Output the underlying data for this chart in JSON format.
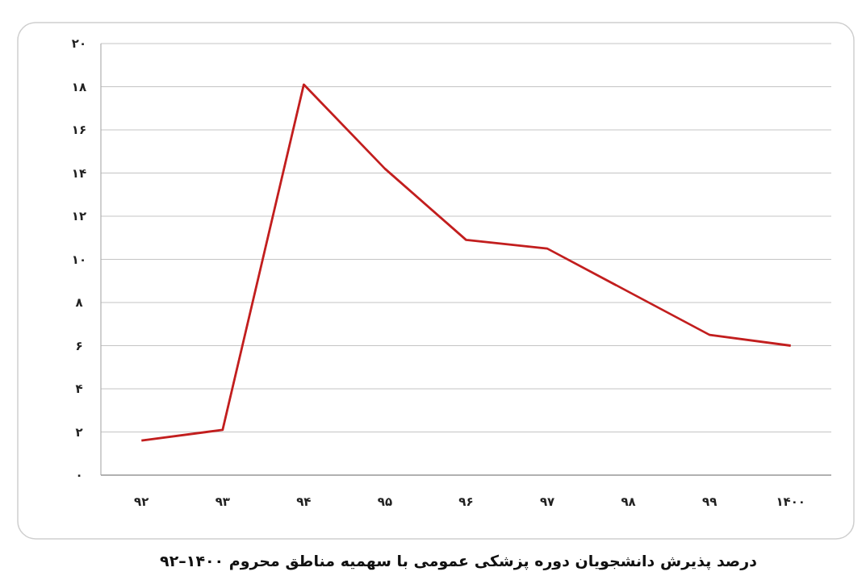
{
  "chart_data": {
    "type": "line",
    "title": "درصد پذیرش دانشجویان دوره پزشکی عمومی با سهمیه مناطق محروم ۱۴۰۰–۹۲",
    "categories": [
      "۹۲",
      "۹۳",
      "۹۴",
      "۹۵",
      "۹۶",
      "۹۷",
      "۹۸",
      "۹۹",
      "۱۴۰۰"
    ],
    "series": [
      {
        "color": "#c21e1e",
        "values": [
          1.6,
          2.1,
          18.1,
          14.2,
          10.9,
          10.5,
          8.5,
          6.5,
          6.0
        ]
      }
    ],
    "ylim": [
      0,
      20
    ],
    "yticks": [
      {
        "value": 0,
        "label": "۰"
      },
      {
        "value": 2,
        "label": "۲"
      },
      {
        "value": 4,
        "label": "۴"
      },
      {
        "value": 6,
        "label": "۶"
      },
      {
        "value": 8,
        "label": "۸"
      },
      {
        "value": 10,
        "label": "۱۰"
      },
      {
        "value": 12,
        "label": "۱۲"
      },
      {
        "value": 14,
        "label": "۱۴"
      },
      {
        "value": 16,
        "label": "۱۶"
      },
      {
        "value": 18,
        "label": "۱۸"
      },
      {
        "value": 20,
        "label": "۲۰"
      }
    ],
    "grid": "y"
  }
}
